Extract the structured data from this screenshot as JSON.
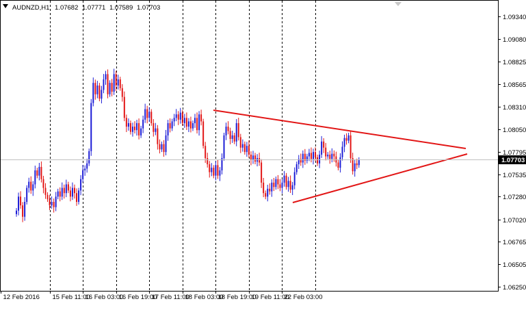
{
  "header": {
    "symbol": "AUDNZD,H1",
    "open": "1.07682",
    "high": "1.07771",
    "low": "1.07589",
    "close": "1.07703",
    "menu_icon": "dropdown-triangle-icon",
    "scroll_icon": "shift-arrow-icon"
  },
  "colors": {
    "background": "#ffffff",
    "frame": "#000000",
    "grid": "#000000",
    "bull": "#1c1cd6",
    "bear": "#e21515",
    "trendline": "#e21515",
    "price_line": "#c0c0c0",
    "price_tag_bg": "#000000",
    "price_tag_text": "#ffffff"
  },
  "chart_data": {
    "type": "candlestick",
    "title": "",
    "xlabel": "",
    "ylabel": "",
    "grid": "vertical dashed",
    "y_ticks": [
      "1.09340",
      "1.09080",
      "1.08825",
      "1.08565",
      "1.08310",
      "1.08050",
      "1.07795",
      "1.07535",
      "1.07280",
      "1.07020",
      "1.06765",
      "1.06505",
      "1.06250"
    ],
    "ylim": [
      1.0616,
      1.0955
    ],
    "current_price": "1.07703",
    "x_tick_labels": [
      "12 Feb 2016",
      "15 Feb 11:00",
      "16 Feb 03:00",
      "16 Feb 19:00",
      "17 Feb 11:00",
      "18 Feb 03:00",
      "18 Feb 19:00",
      "19 Feb 11:00",
      "22 Feb 03:00"
    ],
    "bars_per_period": 16,
    "closes": [
      1.0712,
      1.0728,
      1.0718,
      1.0705,
      1.0722,
      1.0738,
      1.0745,
      1.0735,
      1.0742,
      1.0758,
      1.0752,
      1.0762,
      1.0748,
      1.0738,
      1.073,
      1.0725,
      1.0718,
      1.0722,
      1.0716,
      1.0728,
      1.0734,
      1.0728,
      1.0738,
      1.0732,
      1.0742,
      1.0735,
      1.0728,
      1.0738,
      1.0732,
      1.0722,
      1.0735,
      1.0748,
      1.0758,
      1.076,
      1.0766,
      1.078,
      1.0835,
      1.0858,
      1.0845,
      1.0855,
      1.084,
      1.085,
      1.0862,
      1.0868,
      1.0845,
      1.0858,
      1.0848,
      1.0868,
      1.0855,
      1.0862,
      1.0852,
      1.0842,
      1.0818,
      1.0808,
      1.0812,
      1.0802,
      1.0808,
      1.0804,
      1.0812,
      1.0798,
      1.0806,
      1.0816,
      1.0828,
      1.0818,
      1.0825,
      1.0812,
      1.0802,
      1.0806,
      1.0788,
      1.0782,
      1.0788,
      1.0779,
      1.0798,
      1.0812,
      1.0806,
      1.0814,
      1.0818,
      1.0822,
      1.0816,
      1.0824,
      1.0812,
      1.0818,
      1.0808,
      1.0814,
      1.0806,
      1.0812,
      1.0818,
      1.0804,
      1.0822,
      1.0814,
      1.0786,
      1.0772,
      1.0765,
      1.0756,
      1.0761,
      1.0752,
      1.0764,
      1.0752,
      1.0758,
      1.0772,
      1.0798,
      1.0808,
      1.0803,
      1.0794,
      1.0798,
      1.0791,
      1.0812,
      1.0796,
      1.0784,
      1.0788,
      1.0779,
      1.0786,
      1.0776,
      1.077,
      1.0775,
      1.0768,
      1.0772,
      1.0767,
      1.0744,
      1.0732,
      1.0728,
      1.0737,
      1.0734,
      1.0744,
      1.0739,
      1.0748,
      1.0742,
      1.0738,
      1.0744,
      1.0752,
      1.0739,
      1.0746,
      1.0736,
      1.0741,
      1.0756,
      1.0765,
      1.0771,
      1.0767,
      1.0777,
      1.0769,
      1.0774,
      1.0778,
      1.0771,
      1.0779,
      1.0773,
      1.0766,
      1.0776,
      1.0791,
      1.0784,
      1.0774,
      1.0776,
      1.0771,
      1.0777,
      1.0774,
      1.0767,
      1.0761,
      1.0773,
      1.0785,
      1.0795,
      1.0792,
      1.0798,
      1.0772,
      1.0757,
      1.0766,
      1.0764,
      1.077
    ]
  }
}
